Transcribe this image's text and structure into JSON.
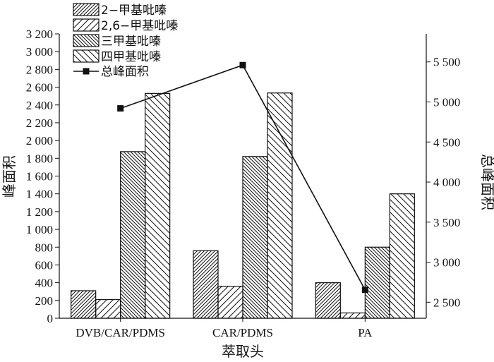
{
  "chart_data": {
    "type": "bar",
    "categories": [
      "DVB/CAR/PDMS",
      "CAR/PDMS",
      "PA"
    ],
    "series": [
      {
        "name": "2−甲基吡嗪",
        "values": [
          310,
          760,
          400
        ],
        "hatch": "dense-right-diagonal"
      },
      {
        "name": "2,6−甲基吡嗪",
        "values": [
          210,
          360,
          60
        ],
        "hatch": "sparse-right-diagonal"
      },
      {
        "name": "三甲基吡嗪",
        "values": [
          1875,
          1820,
          800
        ],
        "hatch": "dense-left-diagonal"
      },
      {
        "name": "四甲基吡嗪",
        "values": [
          2530,
          2535,
          1400
        ],
        "hatch": "sparse-left-diagonal"
      }
    ],
    "line_series": {
      "name": "总峰面积",
      "values": [
        4920,
        5460,
        2655
      ],
      "axis": "right",
      "marker": "square"
    },
    "xlabel": "萃取头",
    "ylabel": "峰面积",
    "y2label": "总峰面积",
    "ylim": [
      0,
      3200
    ],
    "y2lim": [
      2300,
      5850
    ],
    "yticks": [
      0,
      200,
      400,
      600,
      800,
      1000,
      1200,
      1400,
      1600,
      1800,
      2000,
      2200,
      2400,
      2600,
      2800,
      3000,
      3200
    ],
    "yticklabels": [
      "0",
      "200",
      "400",
      "600",
      "800",
      "1 000",
      "1 200",
      "1 400",
      "1 600",
      "1 800",
      "2 000",
      "2 200",
      "2 400",
      "2 600",
      "2 800",
      "3 000",
      "3 200"
    ],
    "y2ticks": [
      2500,
      3000,
      3500,
      4000,
      4500,
      5000,
      5500
    ],
    "y2ticklabels": [
      "2 500",
      "3 000",
      "3 500",
      "4 000",
      "4 500",
      "5 000",
      "5 500"
    ],
    "legend_position": "top-left",
    "grid": false,
    "colors": {
      "ink": "#111111",
      "background": "#ffffff"
    }
  }
}
